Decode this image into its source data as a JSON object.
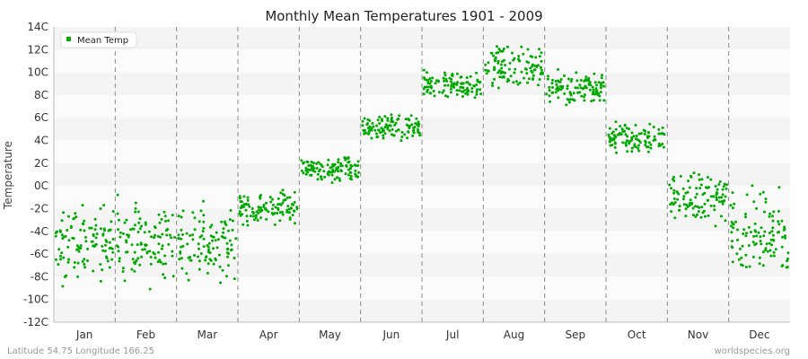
{
  "chart_data": {
    "type": "scatter",
    "title": "Monthly Mean Temperatures 1901 - 2009",
    "ylabel": "Temperature",
    "xlabel": "",
    "categories": [
      "Jan",
      "Feb",
      "Mar",
      "Apr",
      "May",
      "Jun",
      "Jul",
      "Aug",
      "Sep",
      "Oct",
      "Nov",
      "Dec"
    ],
    "y_ticks": [
      "-12C",
      "-10C",
      "-8C",
      "-6C",
      "-4C",
      "-2C",
      "0C",
      "2C",
      "4C",
      "6C",
      "8C",
      "10C",
      "12C",
      "14C"
    ],
    "ylim": [
      -12,
      14
    ],
    "grid": "alternating horizontal bands, dashed vertical month separators",
    "legend": {
      "placement": "top-left",
      "label": "Mean Temp"
    },
    "series": [
      {
        "name": "Mean Temp",
        "color": "#00aa00",
        "monthly_summary": [
          {
            "month": "Jan",
            "approx_min": -10.6,
            "approx_max": 1.0,
            "approx_center": -5.0
          },
          {
            "month": "Feb",
            "approx_min": -10.5,
            "approx_max": -0.2,
            "approx_center": -5.0
          },
          {
            "month": "Mar",
            "approx_min": -9.0,
            "approx_max": 0.0,
            "approx_center": -5.0
          },
          {
            "month": "Apr",
            "approx_min": -4.0,
            "approx_max": 0.5,
            "approx_center": -2.0
          },
          {
            "month": "May",
            "approx_min": -0.3,
            "approx_max": 3.0,
            "approx_center": 1.5
          },
          {
            "month": "Jun",
            "approx_min": 3.2,
            "approx_max": 7.0,
            "approx_center": 5.0
          },
          {
            "month": "Jul",
            "approx_min": 7.5,
            "approx_max": 10.8,
            "approx_center": 8.8
          },
          {
            "month": "Aug",
            "approx_min": 8.5,
            "approx_max": 13.6,
            "approx_center": 10.5
          },
          {
            "month": "Sep",
            "approx_min": 7.0,
            "approx_max": 11.0,
            "approx_center": 8.7
          },
          {
            "month": "Oct",
            "approx_min": 2.5,
            "approx_max": 6.3,
            "approx_center": 4.2
          },
          {
            "month": "Nov",
            "approx_min": -5.3,
            "approx_max": 2.8,
            "approx_center": -1.0
          },
          {
            "month": "Dec",
            "approx_min": -7.2,
            "approx_max": 2.8,
            "approx_center": -4.3
          }
        ],
        "points_per_month": 109
      }
    ]
  },
  "footer": {
    "left": "Latitude 54.75 Longitude 166.25",
    "right": "worldspecies.org"
  }
}
